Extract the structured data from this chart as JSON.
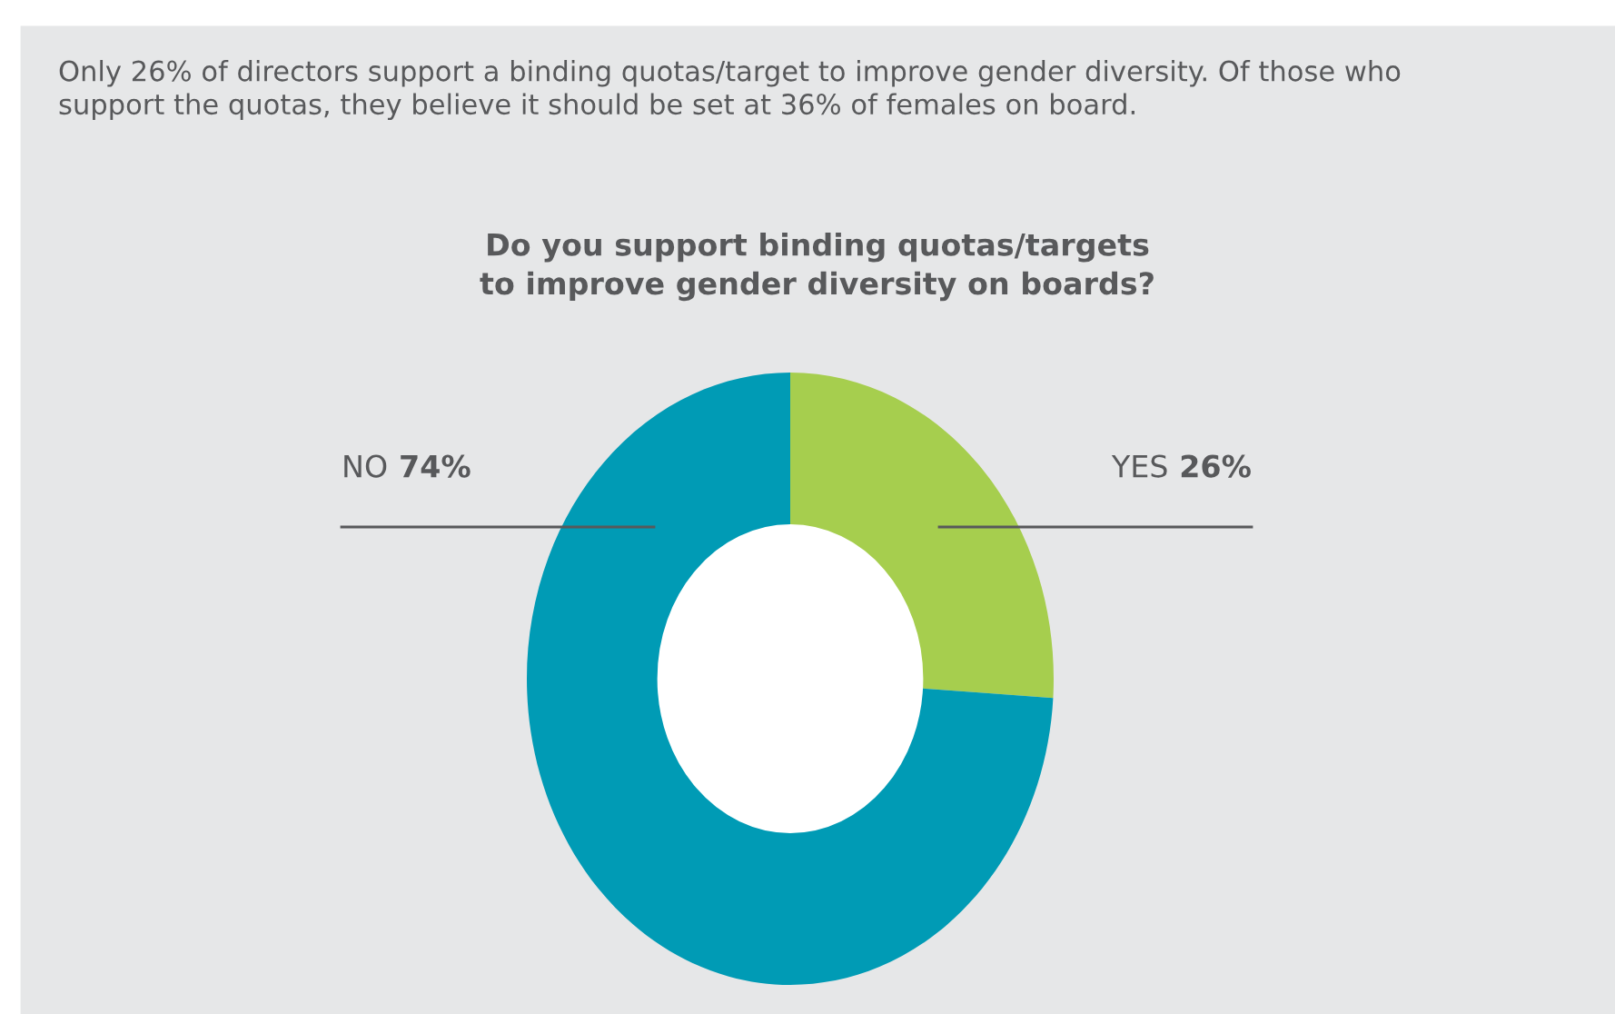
{
  "chart_data": {
    "type": "donut",
    "title": "Do you support binding quotas/targets\nto improve gender diversity on boards?",
    "annotations": [
      "Only 26% of directors support a binding quotas/target to improve gender diversity. Of those who\nsupport the quotas, they believe it should be set at 36% of females on board."
    ],
    "categories": [
      "YES",
      "NO"
    ],
    "values": [
      26,
      74
    ],
    "value_labels": [
      "26%",
      "74%"
    ],
    "colors": [
      "#a6ce4e",
      "#009bb5"
    ],
    "legend": false
  }
}
